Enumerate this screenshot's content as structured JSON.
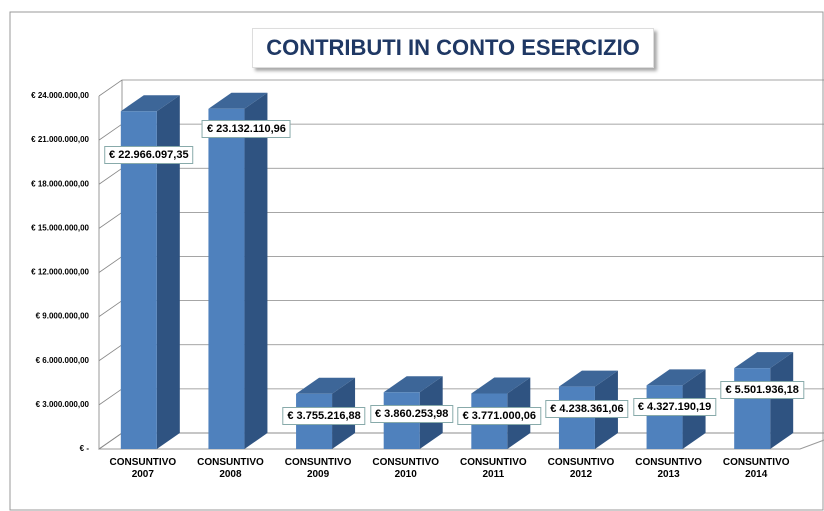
{
  "chart_data": {
    "type": "bar3d",
    "title": "CONTRIBUTI IN CONTO ESERCIZIO",
    "categories": [
      "CONSUNTIVO 2007",
      "CONSUNTIVO 2008",
      "CONSUNTIVO 2009",
      "CONSUNTIVO 2010",
      "CONSUNTIVO 2011",
      "CONSUNTIVO 2012",
      "CONSUNTIVO 2013",
      "CONSUNTIVO 2014"
    ],
    "values": [
      22966097.35,
      23132110.96,
      3755216.88,
      3860253.98,
      3771000.06,
      4238361.06,
      4327190.19,
      5501936.18
    ],
    "value_labels": [
      "€ 22.966.097,35",
      "€ 23.132.110,96",
      "€ 3.755.216,88",
      "€ 3.860.253,98",
      "€ 3.771.000,06",
      "€ 4.238.361,06",
      "€ 4.327.190,19",
      "€ 5.501.936,18"
    ],
    "color": "#4f81bd",
    "ylim": [
      0,
      24000000
    ],
    "yticks": [
      {
        "value": 0,
        "label": "€ -"
      },
      {
        "value": 3000000,
        "label": "€ 3.000.000,00"
      },
      {
        "value": 6000000,
        "label": "€ 6.000.000,00"
      },
      {
        "value": 9000000,
        "label": "€ 9.000.000,00"
      },
      {
        "value": 12000000,
        "label": "€ 12.000.000,00"
      },
      {
        "value": 15000000,
        "label": "€ 15.000.000,00"
      },
      {
        "value": 18000000,
        "label": "€ 18.000.000,00"
      },
      {
        "value": 21000000,
        "label": "€ 21.000.000,00"
      },
      {
        "value": 24000000,
        "label": "€ 24.000.000,00"
      }
    ],
    "grid": true
  }
}
